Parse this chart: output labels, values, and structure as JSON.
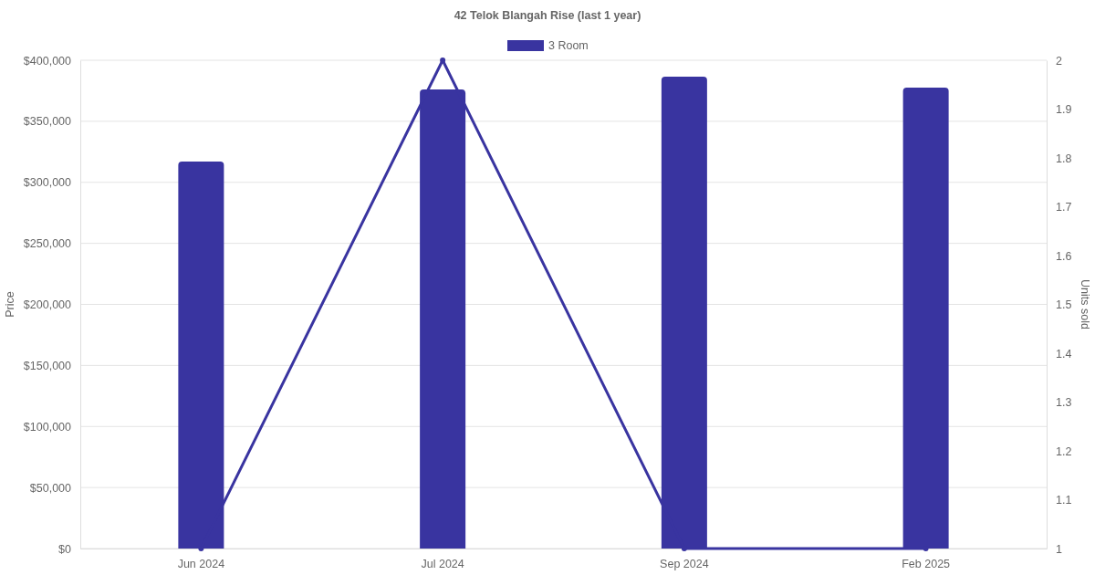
{
  "chart_data": {
    "type": "bar",
    "title": "42 Telok Blangah Rise (last 1 year)",
    "ylabel": "Price",
    "y2label": "Units sold",
    "categories": [
      "Jun 2024",
      "Jul 2024",
      "Sep 2024",
      "Feb 2025"
    ],
    "series": [
      {
        "name": "3 Room",
        "color": "#3934a0",
        "values": [
          317000,
          376000,
          386500,
          377500
        ]
      },
      {
        "type": "line",
        "axis": "y2",
        "color": "#3934a0",
        "values": [
          1,
          2,
          1,
          1
        ],
        "marker": "circle"
      }
    ],
    "ylim": [
      0,
      400000
    ],
    "yticks": [
      {
        "value": 0,
        "label": "$0"
      },
      {
        "value": 50000,
        "label": "$50,000"
      },
      {
        "value": 100000,
        "label": "$100,000"
      },
      {
        "value": 150000,
        "label": "$150,000"
      },
      {
        "value": 200000,
        "label": "$200,000"
      },
      {
        "value": 250000,
        "label": "$250,000"
      },
      {
        "value": 300000,
        "label": "$300,000"
      },
      {
        "value": 350000,
        "label": "$350,000"
      },
      {
        "value": 400000,
        "label": "$400,000"
      }
    ],
    "y2lim": [
      1,
      2
    ],
    "y2ticks": [
      1,
      1.1,
      1.2,
      1.3,
      1.4,
      1.5,
      1.6,
      1.7,
      1.8,
      1.9,
      2
    ],
    "grid": "y",
    "legend": "top"
  }
}
